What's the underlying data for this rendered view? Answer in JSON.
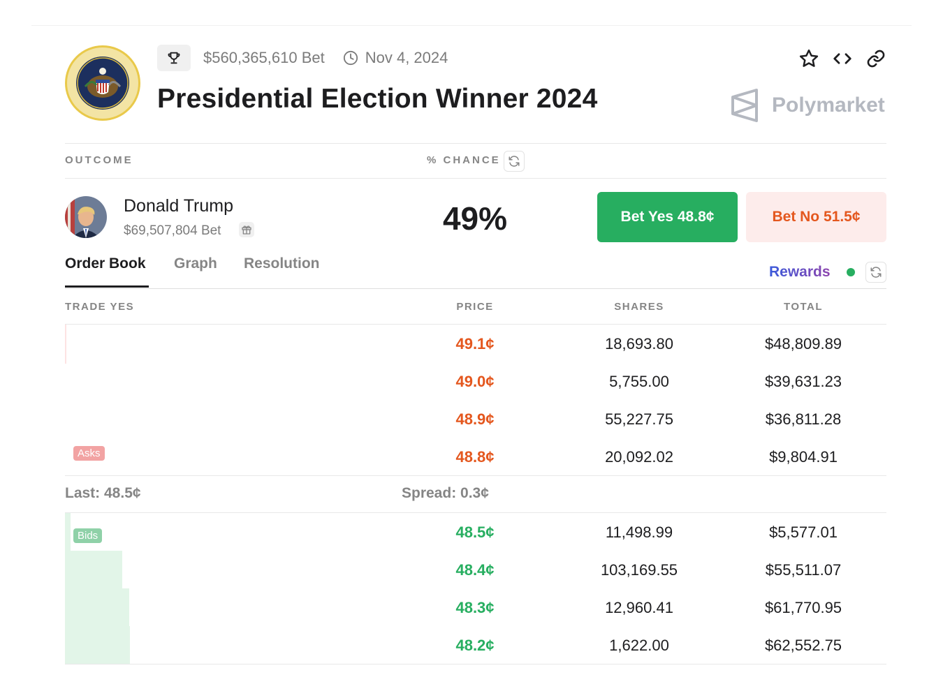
{
  "header": {
    "volume": "$560,365,610 Bet",
    "date": "Nov 4, 2024",
    "title": "Presidential Election Winner 2024",
    "brand": "Polymarket"
  },
  "columns": {
    "outcome": "OUTCOME",
    "chance": "% CHANCE"
  },
  "outcome": {
    "name": "Donald Trump",
    "volume": "$69,507,804 Bet",
    "chance": "49%",
    "bet_yes": "Bet Yes 48.8¢",
    "bet_no": "Bet No 51.5¢"
  },
  "tabs": [
    "Order Book",
    "Graph",
    "Resolution"
  ],
  "rewards": "Rewards",
  "orderbook": {
    "headers": [
      "TRADE YES",
      "PRICE",
      "SHARES",
      "TOTAL"
    ],
    "asks_label": "Asks",
    "bids_label": "Bids",
    "asks": [
      {
        "price": "49.1¢",
        "shares": "18,693.80",
        "total": "$48,809.89"
      },
      {
        "price": "49.0¢",
        "shares": "5,755.00",
        "total": "$39,631.23"
      },
      {
        "price": "48.9¢",
        "shares": "55,227.75",
        "total": "$36,811.28"
      },
      {
        "price": "48.8¢",
        "shares": "20,092.02",
        "total": "$9,804.91"
      }
    ],
    "last": "Last: 48.5¢",
    "spread": "Spread: 0.3¢",
    "bids": [
      {
        "price": "48.5¢",
        "shares": "11,498.99",
        "total": "$5,577.01"
      },
      {
        "price": "48.4¢",
        "shares": "103,169.55",
        "total": "$55,511.07"
      },
      {
        "price": "48.3¢",
        "shares": "12,960.41",
        "total": "$61,770.95"
      },
      {
        "price": "48.2¢",
        "shares": "1,622.00",
        "total": "$62,552.75"
      }
    ]
  },
  "colors": {
    "green": "#27ae60",
    "red": "#e4571e",
    "muted": "#858585"
  }
}
